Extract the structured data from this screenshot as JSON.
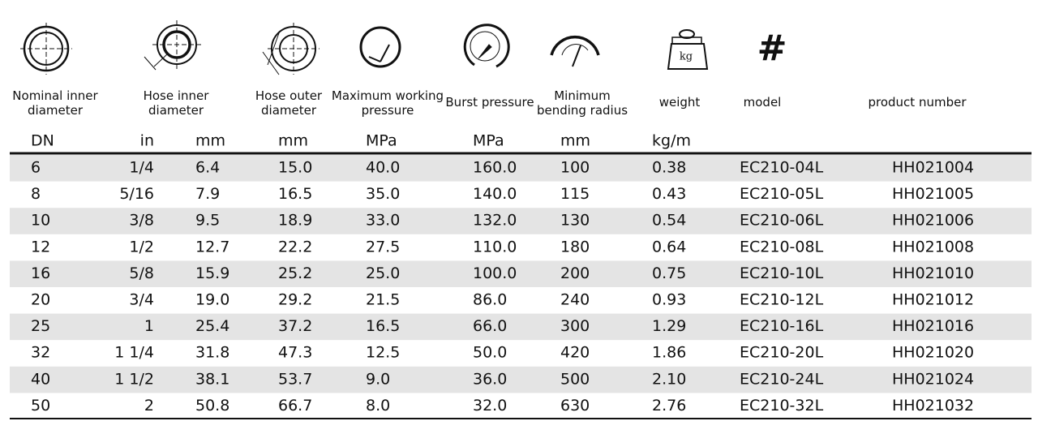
{
  "table": {
    "headers": [
      "Nominal inner\ndiameter",
      "Hose inner\ndiameter",
      "Hose outer\ndiameter",
      "Maximum working\npressure",
      "Burst pressure",
      "Minimum\nbending radius",
      "weight",
      "model",
      "product number"
    ],
    "icon_labels": {
      "weight": "kg",
      "model": "#"
    },
    "units": [
      "DN",
      "in",
      "mm",
      "mm",
      "MPa",
      "MPa",
      "mm",
      "kg/m"
    ],
    "rows": [
      [
        "6",
        "1/4",
        "6.4",
        "15.0",
        "40.0",
        "160.0",
        "100",
        "0.38",
        "EC210-04L",
        "HH021004"
      ],
      [
        "8",
        "5/16",
        "7.9",
        "16.5",
        "35.0",
        "140.0",
        "115",
        "0.43",
        "EC210-05L",
        "HH021005"
      ],
      [
        "10",
        "3/8",
        "9.5",
        "18.9",
        "33.0",
        "132.0",
        "130",
        "0.54",
        "EC210-06L",
        "HH021006"
      ],
      [
        "12",
        "1/2",
        "12.7",
        "22.2",
        "27.5",
        "110.0",
        "180",
        "0.64",
        "EC210-08L",
        "HH021008"
      ],
      [
        "16",
        "5/8",
        "15.9",
        "25.2",
        "25.0",
        "100.0",
        "200",
        "0.75",
        "EC210-10L",
        "HH021010"
      ],
      [
        "20",
        "3/4",
        "19.0",
        "29.2",
        "21.5",
        "86.0",
        "240",
        "0.93",
        "EC210-12L",
        "HH021012"
      ],
      [
        "25",
        "1",
        "25.4",
        "37.2",
        "16.5",
        "66.0",
        "300",
        "1.29",
        "EC210-16L",
        "HH021016"
      ],
      [
        "32",
        "1 1/4",
        "31.8",
        "47.3",
        "12.5",
        "50.0",
        "420",
        "1.86",
        "EC210-20L",
        "HH021020"
      ],
      [
        "40",
        "1 1/2",
        "38.1",
        "53.7",
        "9.0",
        "36.0",
        "500",
        "2.10",
        "EC210-24L",
        "HH021024"
      ],
      [
        "50",
        "2",
        "50.8",
        "66.7",
        "8.0",
        "32.0",
        "630",
        "2.76",
        "EC210-32L",
        "HH021032"
      ]
    ]
  }
}
